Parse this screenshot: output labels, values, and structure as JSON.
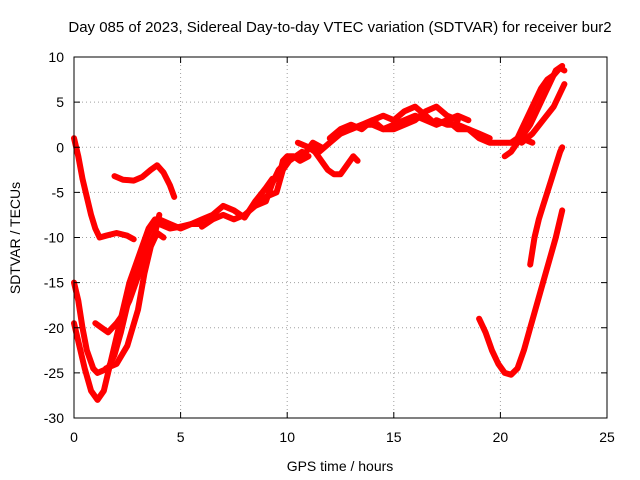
{
  "chart_data": {
    "type": "scatter",
    "title": "Day 085 of 2023, Sidereal Day-to-day VTEC variation (SDTVAR) for receiver bur2",
    "xlabel": "GPS time / hours",
    "ylabel": "SDTVAR / TECUs",
    "xlim": [
      0,
      25
    ],
    "ylim": [
      -30,
      10
    ],
    "xticks": [
      0,
      5,
      10,
      15,
      20,
      25
    ],
    "yticks": [
      -30,
      -25,
      -20,
      -15,
      -10,
      -5,
      0,
      5,
      10
    ],
    "grid": true,
    "legend": "none",
    "color": "#ff0000",
    "series": [
      {
        "x": [
          0.0,
          0.2,
          0.4,
          0.6,
          0.8,
          1.0,
          1.2,
          1.5,
          2.0,
          2.5,
          2.8
        ],
        "y": [
          1.0,
          -1.0,
          -3.5,
          -5.5,
          -7.5,
          -9.0,
          -10.0,
          -9.8,
          -9.5,
          -9.8,
          -10.2
        ]
      },
      {
        "x": [
          1.9,
          2.3,
          2.8,
          3.2,
          3.6,
          3.9,
          4.2,
          4.5,
          4.7
        ],
        "y": [
          -3.2,
          -3.6,
          -3.7,
          -3.3,
          -2.5,
          -2.0,
          -2.8,
          -4.2,
          -5.5
        ]
      },
      {
        "x": [
          0.0,
          0.2,
          0.4,
          0.6,
          0.9,
          1.1,
          1.3,
          1.6,
          1.9,
          2.2,
          2.5,
          2.8,
          3.1,
          3.4,
          3.7,
          4.0,
          4.5,
          5.0,
          5.5,
          6.0
        ],
        "y": [
          -15.0,
          -17.0,
          -20.0,
          -22.5,
          -24.5,
          -25.0,
          -24.8,
          -24.5,
          -23.0,
          -20.5,
          -17.5,
          -15.0,
          -12.5,
          -10.0,
          -8.5,
          -8.0,
          -8.5,
          -9.0,
          -8.5,
          -8.5
        ]
      },
      {
        "x": [
          0.0,
          0.2,
          0.5,
          0.8,
          1.1,
          1.4,
          1.7,
          2.0,
          2.3,
          2.6,
          2.9,
          3.2,
          3.5,
          3.8,
          4.0,
          4.5,
          5.0
        ],
        "y": [
          -19.5,
          -21.5,
          -24.5,
          -27.0,
          -28.0,
          -27.0,
          -24.0,
          -21.0,
          -18.0,
          -15.0,
          -13.0,
          -11.0,
          -9.0,
          -8.0,
          -8.5,
          -9.0,
          -8.8
        ]
      },
      {
        "x": [
          1.0,
          1.3,
          1.6,
          2.0,
          2.3,
          2.6,
          2.9,
          3.2,
          3.5,
          3.8,
          4.0
        ],
        "y": [
          -19.5,
          -20.0,
          -20.5,
          -19.5,
          -18.5,
          -17.0,
          -15.0,
          -13.0,
          -11.0,
          -9.5,
          -7.5
        ]
      },
      {
        "x": [
          1.5,
          2.0,
          2.5,
          3.0,
          3.3,
          3.6,
          3.9,
          4.2
        ],
        "y": [
          -24.5,
          -24.0,
          -22.0,
          -18.0,
          -14.0,
          -11.0,
          -9.5,
          -10.0
        ]
      },
      {
        "x": [
          5.0,
          5.5,
          6.0,
          6.5,
          7.0,
          7.5,
          8.0,
          8.5,
          9.0,
          9.3,
          9.6,
          9.8,
          10.0,
          10.3,
          10.6,
          11.0
        ],
        "y": [
          -8.8,
          -8.5,
          -8.0,
          -7.5,
          -6.5,
          -7.0,
          -7.8,
          -6.0,
          -4.5,
          -3.5,
          -3.5,
          -1.5,
          -1.0,
          -1.0,
          -1.5,
          -1.0
        ]
      },
      {
        "x": [
          6.0,
          6.5,
          7.0,
          7.5,
          8.0,
          8.5,
          9.0,
          9.5,
          9.8,
          10.1,
          10.4,
          10.7
        ],
        "y": [
          -8.8,
          -8.0,
          -7.5,
          -8.0,
          -7.5,
          -6.5,
          -5.5,
          -5.0,
          -2.5,
          -1.5,
          -1.0,
          -0.5
        ]
      },
      {
        "x": [
          8.5,
          9.0,
          9.3,
          9.6,
          10.0,
          10.4,
          10.8,
          11.2,
          11.6
        ],
        "y": [
          -6.5,
          -6.0,
          -4.0,
          -2.5,
          -1.5,
          -1.0,
          -0.8,
          0.5,
          0.0
        ]
      },
      {
        "x": [
          11.0,
          11.3,
          11.6,
          11.9,
          12.2,
          12.5,
          12.8,
          13.1,
          13.3
        ],
        "y": [
          0.0,
          -0.5,
          -1.5,
          -2.5,
          -3.0,
          -3.0,
          -2.0,
          -1.0,
          -1.5
        ]
      },
      {
        "x": [
          10.5,
          11.0,
          11.5,
          12.0,
          12.5,
          13.0,
          13.5,
          14.0,
          14.5,
          15.0,
          15.5,
          16.0,
          16.5,
          17.0,
          17.5,
          18.0,
          18.5
        ],
        "y": [
          0.5,
          0.0,
          -0.5,
          0.5,
          1.5,
          2.0,
          2.5,
          2.5,
          2.0,
          2.5,
          3.0,
          3.5,
          3.0,
          2.5,
          3.0,
          3.5,
          3.0
        ]
      },
      {
        "x": [
          12.0,
          12.5,
          13.0,
          13.5,
          14.0,
          14.5,
          15.0,
          15.5,
          16.0,
          16.5,
          17.0,
          17.5,
          18.0,
          18.5,
          19.0,
          19.5
        ],
        "y": [
          1.0,
          2.0,
          2.5,
          2.0,
          3.0,
          3.5,
          3.0,
          4.0,
          4.5,
          3.5,
          2.5,
          3.0,
          2.0,
          2.0,
          1.5,
          1.0
        ]
      },
      {
        "x": [
          13.0,
          13.5,
          14.0,
          14.5,
          15.0,
          15.5,
          16.0,
          16.5,
          17.0,
          17.5,
          18.0
        ],
        "y": [
          2.0,
          2.5,
          3.0,
          2.0,
          2.0,
          2.5,
          3.0,
          4.0,
          4.5,
          3.5,
          3.0
        ]
      },
      {
        "x": [
          17.0,
          17.5,
          18.0,
          18.5,
          19.0,
          19.5,
          20.0,
          20.5,
          21.0,
          21.5
        ],
        "y": [
          3.0,
          2.5,
          2.5,
          2.0,
          1.0,
          0.5,
          0.5,
          0.5,
          1.0,
          0.5
        ]
      },
      {
        "x": [
          20.2,
          20.5,
          20.8,
          21.1,
          21.4,
          21.7,
          22.0,
          22.3,
          22.6,
          22.9
        ],
        "y": [
          -1.0,
          -0.5,
          0.5,
          1.5,
          2.5,
          4.0,
          5.5,
          7.0,
          8.5,
          9.0
        ]
      },
      {
        "x": [
          20.5,
          20.8,
          21.0,
          21.3,
          21.6,
          21.9,
          22.2,
          22.5,
          22.8,
          23.0
        ],
        "y": [
          0.5,
          1.0,
          2.0,
          3.5,
          5.0,
          6.5,
          7.5,
          8.0,
          8.8,
          8.5
        ]
      },
      {
        "x": [
          21.0,
          21.5,
          22.0,
          22.5,
          22.8,
          23.0
        ],
        "y": [
          0.5,
          1.5,
          3.0,
          4.5,
          6.0,
          7.0
        ]
      },
      {
        "x": [
          19.0,
          19.3,
          19.6,
          19.9,
          20.2,
          20.5,
          20.8,
          21.1,
          21.4,
          21.7,
          22.0,
          22.3,
          22.6,
          22.9
        ],
        "y": [
          -19.0,
          -20.5,
          -22.5,
          -24.0,
          -25.0,
          -25.2,
          -24.5,
          -22.5,
          -20.0,
          -17.5,
          -15.0,
          -12.5,
          -10.0,
          -7.0
        ]
      },
      {
        "x": [
          21.4,
          21.6,
          21.8,
          22.0,
          22.2,
          22.4,
          22.6,
          22.8,
          22.9
        ],
        "y": [
          -13.0,
          -10.0,
          -8.0,
          -6.5,
          -5.0,
          -3.5,
          -2.0,
          -0.5,
          0.0
        ]
      }
    ]
  }
}
